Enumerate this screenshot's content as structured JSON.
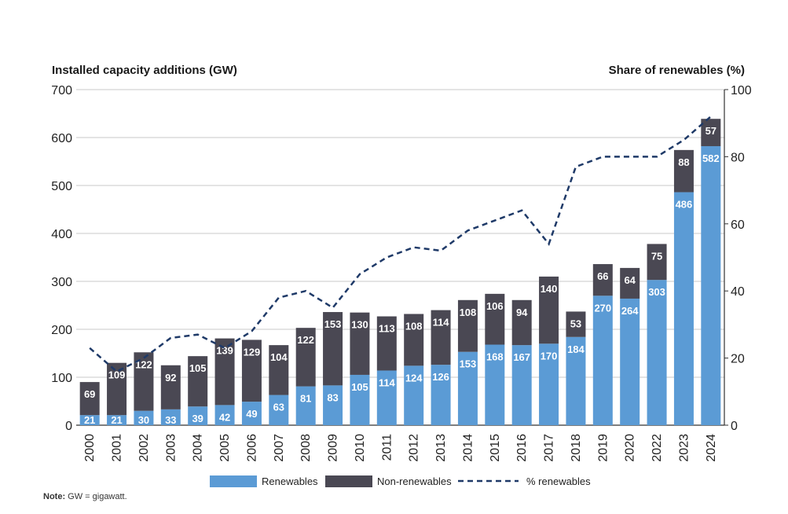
{
  "chart_data": {
    "type": "bar",
    "stacked": true,
    "left_axis_title": "Installed capacity additions (GW)",
    "right_axis_title": "Share of  renewables (%)",
    "categories": [
      "2000",
      "2001",
      "2002",
      "2003",
      "2004",
      "2005",
      "2006",
      "2007",
      "2008",
      "2009",
      "2010",
      "2011",
      "2012",
      "2013",
      "2014",
      "2015",
      "2016",
      "2017",
      "2018",
      "2019",
      "2020",
      "2022",
      "2023",
      "2024"
    ],
    "series": [
      {
        "name": "Renewables",
        "values": [
          21,
          21,
          30,
          33,
          39,
          42,
          49,
          63,
          81,
          83,
          105,
          114,
          124,
          126,
          153,
          168,
          167,
          170,
          184,
          270,
          264,
          303,
          486,
          582
        ],
        "color": "#5b9bd5"
      },
      {
        "name": "Non-renewables",
        "values": [
          69,
          109,
          122,
          92,
          105,
          139,
          129,
          104,
          122,
          153,
          130,
          113,
          108,
          114,
          108,
          106,
          94,
          140,
          53,
          66,
          64,
          75,
          88,
          57
        ],
        "color": "#4a4853"
      }
    ],
    "line_series": {
      "name": "% renewables",
      "axis": "right",
      "style": "dashed",
      "color": "#1f3a68",
      "values": [
        23,
        16,
        20,
        26,
        27,
        23,
        28,
        38,
        40,
        35,
        45,
        50,
        53,
        52,
        58,
        61,
        64,
        54,
        77,
        80,
        80,
        80,
        85,
        92
      ]
    },
    "y_left": {
      "min": 0,
      "max": 700,
      "ticks": [
        0,
        100,
        200,
        300,
        400,
        500,
        600,
        700
      ]
    },
    "y_right": {
      "min": 0,
      "max": 100,
      "ticks": [
        0,
        20,
        40,
        60,
        80,
        100
      ]
    },
    "grid": true,
    "legend_position": "bottom"
  },
  "note": {
    "label": "Note:",
    "text": " GW = gigawatt."
  }
}
